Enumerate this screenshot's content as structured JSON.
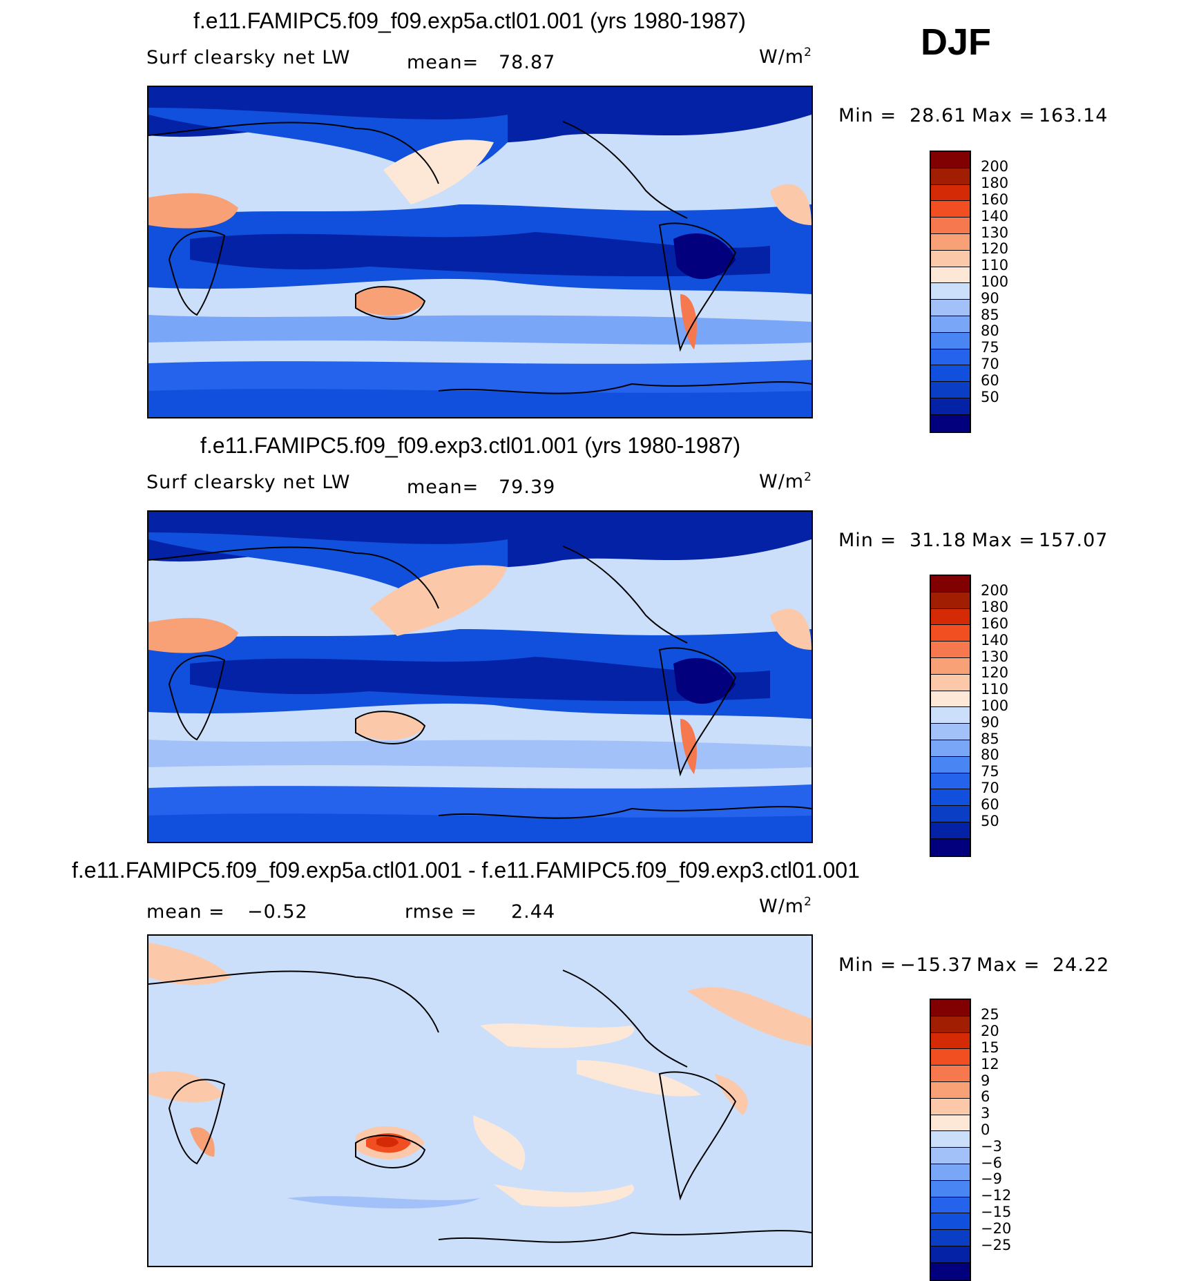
{
  "figure": {
    "season": "DJF",
    "units_main": "W/m",
    "units_exp": "2"
  },
  "colors": {
    "abs_scale": [
      "#02007d",
      "#0422a6",
      "#0a3ec4",
      "#1150dd",
      "#2563ec",
      "#4a86f3",
      "#7aa6f7",
      "#a2c1f9",
      "#cbdffb",
      "#fde8d8",
      "#fbc9aa",
      "#f8a076",
      "#f5784f",
      "#f14f22",
      "#d52a06",
      "#a11e02",
      "#810001"
    ],
    "diff_scale": [
      "#02007d",
      "#0422a6",
      "#0a3ec4",
      "#1150dd",
      "#2563ec",
      "#4a86f3",
      "#7aa6f7",
      "#a2c1f9",
      "#cbdffb",
      "#fde8d8",
      "#fbc9aa",
      "#f8a076",
      "#f5784f",
      "#f14f22",
      "#d52a06",
      "#a11e02",
      "#810001"
    ]
  },
  "chart_data": [
    {
      "type": "heatmap",
      "title": "f.e11.FAMIPC5.f09_f09.exp5a.ctl01.001 (yrs 1980-1987)",
      "variable": "Surf clearsky net LW",
      "mean_label": "mean=",
      "mean": "78.87",
      "min_label": "Min =",
      "min": "28.61",
      "max_label": "Max =",
      "max": "163.14",
      "levels": [
        "200",
        "180",
        "160",
        "140",
        "130",
        "120",
        "110",
        "100",
        "90",
        "85",
        "80",
        "75",
        "70",
        "60",
        "50"
      ]
    },
    {
      "type": "heatmap",
      "title": "f.e11.FAMIPC5.f09_f09.exp3.ctl01.001 (yrs 1980-1987)",
      "variable": "Surf clearsky net LW",
      "mean_label": "mean=",
      "mean": "79.39",
      "min_label": "Min =",
      "min": "31.18",
      "max_label": "Max =",
      "max": "157.07",
      "levels": [
        "200",
        "180",
        "160",
        "140",
        "130",
        "120",
        "110",
        "100",
        "90",
        "85",
        "80",
        "75",
        "70",
        "60",
        "50"
      ]
    },
    {
      "type": "heatmap",
      "title": "f.e11.FAMIPC5.f09_f09.exp5a.ctl01.001 - f.e11.FAMIPC5.f09_f09.exp3.ctl01.001",
      "mean_label": "mean =",
      "mean": "−0.52",
      "rmse_label": "rmse =",
      "rmse": "2.44",
      "min_label": "Min =",
      "min": "−15.37",
      "max_label": "Max =",
      "max": "24.22",
      "levels": [
        "25",
        "20",
        "15",
        "12",
        "9",
        "6",
        "3",
        "0",
        "−3",
        "−6",
        "−9",
        "−12",
        "−15",
        "−20",
        "−25"
      ]
    }
  ]
}
